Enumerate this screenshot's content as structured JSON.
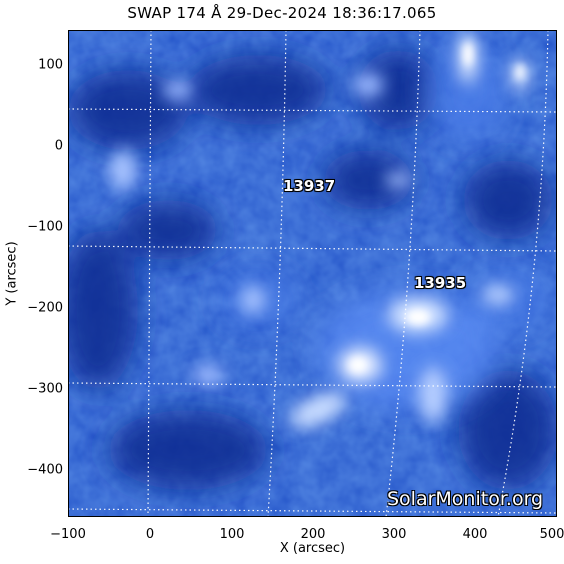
{
  "title": "SWAP 174 Å 29-Dec-2024 18:36:17.065",
  "axes": {
    "xlabel": "X (arcsec)",
    "ylabel": "Y (arcsec)",
    "x_ticks": [
      "−100",
      "0",
      "100",
      "200",
      "300",
      "400",
      "500"
    ],
    "y_ticks": [
      "100",
      "0",
      "−100",
      "−200",
      "−300",
      "−400"
    ]
  },
  "active_regions": [
    {
      "id": "13937"
    },
    {
      "id": "13935"
    }
  ],
  "watermark": "SolarMonitor.org",
  "colors": {
    "background_dark": "#0a2a8a",
    "mid_blue": "#2a5ad8",
    "bright": "#e8f0ff",
    "grid": "#ffffff"
  }
}
